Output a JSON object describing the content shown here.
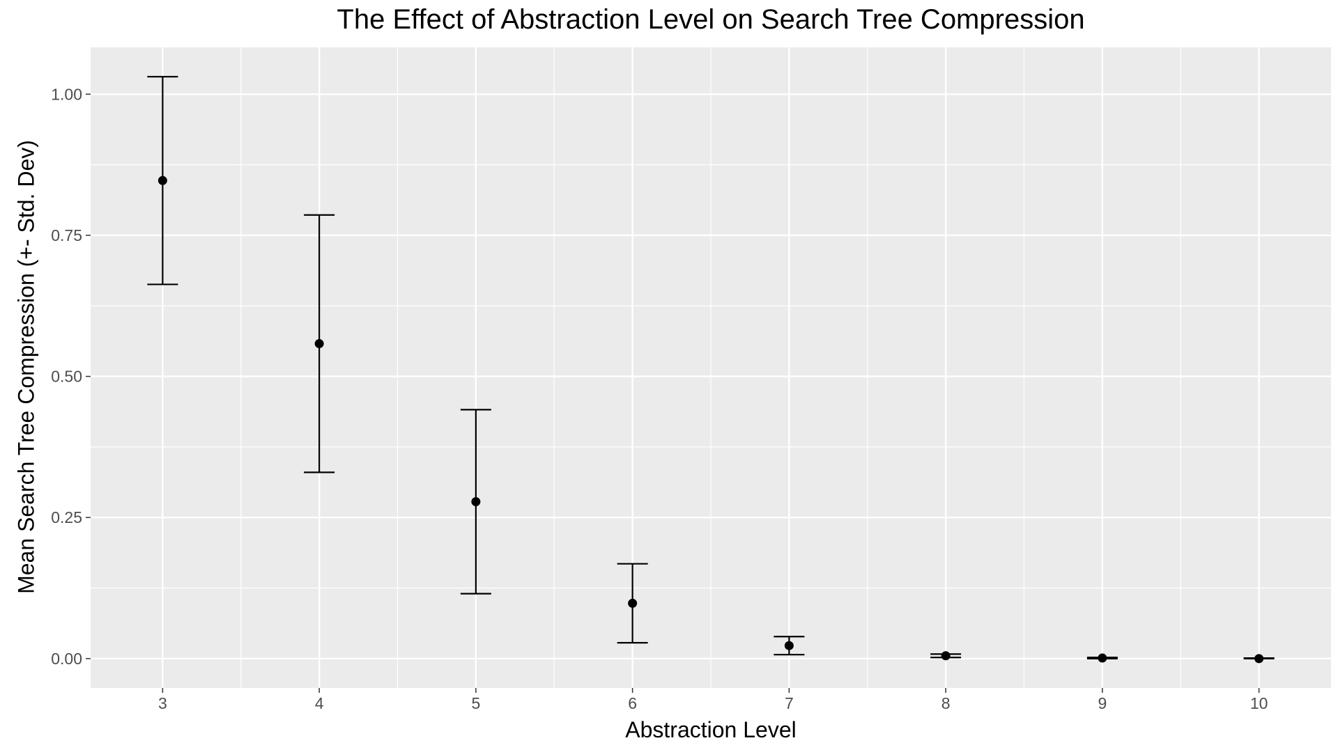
{
  "chart_data": {
    "type": "scatter",
    "title": "The Effect of Abstraction Level on Search Tree Compression",
    "xlabel": "Abstraction Level",
    "ylabel": "Mean Search Tree Compression (+- Std. Dev)",
    "x": [
      3,
      4,
      5,
      6,
      7,
      8,
      9,
      10
    ],
    "series": [
      {
        "mean": [
          0.847,
          0.558,
          0.278,
          0.098,
          0.023,
          0.005,
          0.001,
          0.0
        ],
        "lower": [
          0.663,
          0.33,
          0.115,
          0.028,
          0.007,
          0.002,
          0.0,
          0.0
        ],
        "upper": [
          1.031,
          0.786,
          0.441,
          0.168,
          0.039,
          0.008,
          0.002,
          0.001
        ]
      }
    ],
    "x_ticks": [
      "3",
      "4",
      "5",
      "6",
      "7",
      "8",
      "9",
      "10"
    ],
    "y_ticks": [
      "0.00",
      "0.25",
      "0.50",
      "0.75",
      "1.00"
    ],
    "y_tick_values": [
      0,
      0.25,
      0.5,
      0.75,
      1.0
    ],
    "xlim": [
      2.54,
      10.46
    ],
    "ylim": [
      -0.052,
      1.083
    ],
    "grid": true,
    "colors": {
      "panel": "#ebebeb",
      "grid": "#ffffff",
      "marks": "#000000",
      "tick_label": "#4d4d4d"
    }
  }
}
